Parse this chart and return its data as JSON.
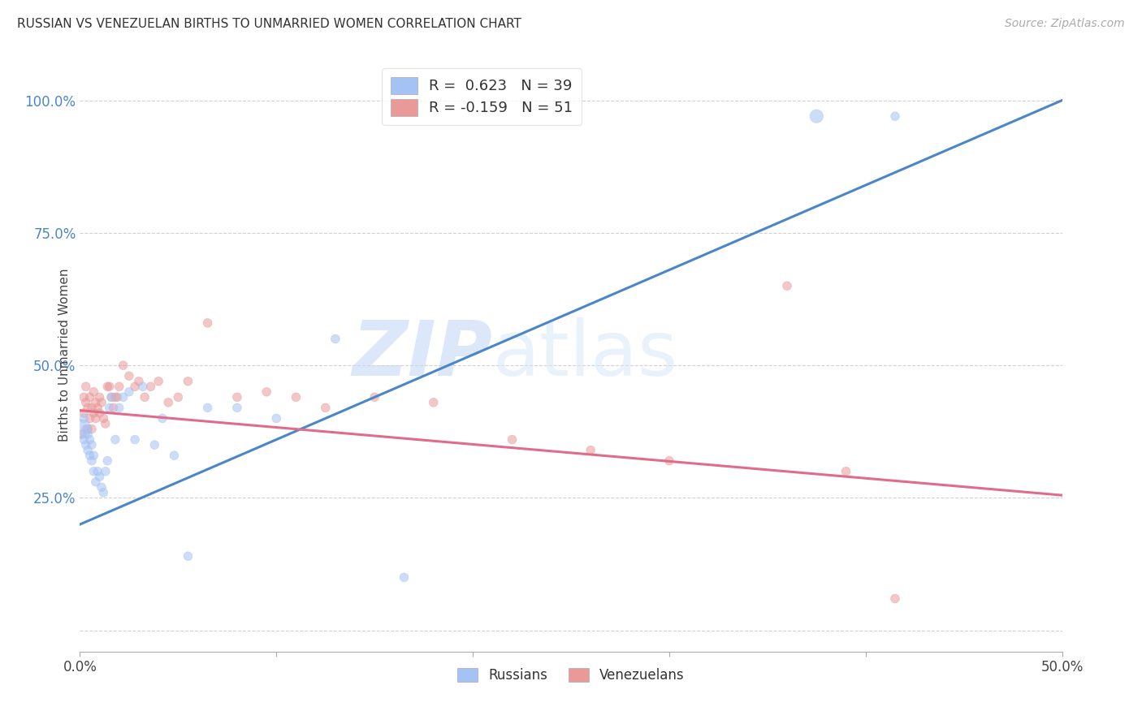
{
  "title": "RUSSIAN VS VENEZUELAN BIRTHS TO UNMARRIED WOMEN CORRELATION CHART",
  "source": "Source: ZipAtlas.com",
  "ylabel": "Births to Unmarried Women",
  "watermark_zip": "ZIP",
  "watermark_atlas": "atlas",
  "russian_R": 0.623,
  "russian_N": 39,
  "venezuelan_R": -0.159,
  "venezuelan_N": 51,
  "xlim": [
    0.0,
    0.5
  ],
  "ylim": [
    -0.04,
    1.08
  ],
  "yticks": [
    0.0,
    0.25,
    0.5,
    0.75,
    1.0
  ],
  "ytick_labels": [
    "",
    "25.0%",
    "50.0%",
    "75.0%",
    "100.0%"
  ],
  "xticks": [
    0.0,
    0.1,
    0.2,
    0.3,
    0.4,
    0.5
  ],
  "xtick_labels": [
    "0.0%",
    "",
    "",
    "",
    "",
    "50.0%"
  ],
  "russian_color": "#a4c2f4",
  "venezuelan_color": "#ea9999",
  "russian_line_color": "#4a86c8",
  "venezuelan_line_color": "#e06c8a",
  "background_color": "#ffffff",
  "grid_color": "#cccccc",
  "russian_line_x": [
    0.0,
    0.5
  ],
  "russian_line_y": [
    0.2,
    1.0
  ],
  "venezuelan_line_x": [
    0.0,
    0.5
  ],
  "venezuelan_line_y": [
    0.415,
    0.255
  ],
  "russians_x": [
    0.001,
    0.002,
    0.002,
    0.003,
    0.003,
    0.004,
    0.004,
    0.005,
    0.005,
    0.006,
    0.006,
    0.007,
    0.007,
    0.008,
    0.009,
    0.01,
    0.011,
    0.012,
    0.013,
    0.014,
    0.015,
    0.016,
    0.018,
    0.02,
    0.022,
    0.025,
    0.028,
    0.032,
    0.038,
    0.042,
    0.048,
    0.055,
    0.065,
    0.08,
    0.1,
    0.13,
    0.165,
    0.375,
    0.415
  ],
  "russians_y": [
    0.38,
    0.36,
    0.4,
    0.35,
    0.38,
    0.34,
    0.37,
    0.33,
    0.36,
    0.32,
    0.35,
    0.3,
    0.33,
    0.28,
    0.3,
    0.29,
    0.27,
    0.26,
    0.3,
    0.32,
    0.42,
    0.44,
    0.36,
    0.42,
    0.44,
    0.45,
    0.36,
    0.46,
    0.35,
    0.4,
    0.33,
    0.14,
    0.42,
    0.42,
    0.4,
    0.55,
    0.1,
    0.97,
    0.97
  ],
  "russians_size": [
    280,
    60,
    60,
    60,
    60,
    60,
    60,
    60,
    60,
    60,
    60,
    60,
    60,
    60,
    60,
    60,
    60,
    60,
    60,
    60,
    60,
    60,
    60,
    60,
    60,
    60,
    60,
    60,
    60,
    60,
    60,
    60,
    60,
    60,
    60,
    60,
    60,
    140,
    60
  ],
  "venezuelans_x": [
    0.001,
    0.002,
    0.002,
    0.003,
    0.003,
    0.004,
    0.004,
    0.005,
    0.005,
    0.006,
    0.006,
    0.007,
    0.007,
    0.008,
    0.008,
    0.009,
    0.01,
    0.01,
    0.011,
    0.012,
    0.013,
    0.014,
    0.015,
    0.016,
    0.017,
    0.018,
    0.019,
    0.02,
    0.022,
    0.025,
    0.028,
    0.03,
    0.033,
    0.036,
    0.04,
    0.045,
    0.05,
    0.055,
    0.065,
    0.08,
    0.095,
    0.11,
    0.125,
    0.15,
    0.18,
    0.22,
    0.26,
    0.3,
    0.36,
    0.39,
    0.415
  ],
  "venezuelans_y": [
    0.37,
    0.41,
    0.44,
    0.43,
    0.46,
    0.38,
    0.42,
    0.4,
    0.44,
    0.38,
    0.42,
    0.41,
    0.45,
    0.4,
    0.43,
    0.42,
    0.41,
    0.44,
    0.43,
    0.4,
    0.39,
    0.46,
    0.46,
    0.44,
    0.42,
    0.44,
    0.44,
    0.46,
    0.5,
    0.48,
    0.46,
    0.47,
    0.44,
    0.46,
    0.47,
    0.43,
    0.44,
    0.47,
    0.58,
    0.44,
    0.45,
    0.44,
    0.42,
    0.44,
    0.43,
    0.36,
    0.34,
    0.32,
    0.65,
    0.3,
    0.06
  ],
  "venezuelans_size": [
    60,
    60,
    60,
    60,
    60,
    60,
    60,
    60,
    60,
    60,
    60,
    60,
    60,
    60,
    60,
    60,
    60,
    60,
    60,
    60,
    60,
    60,
    60,
    60,
    60,
    60,
    60,
    60,
    60,
    60,
    60,
    60,
    60,
    60,
    60,
    60,
    60,
    60,
    60,
    60,
    60,
    60,
    60,
    60,
    60,
    60,
    60,
    60,
    60,
    60,
    60
  ]
}
